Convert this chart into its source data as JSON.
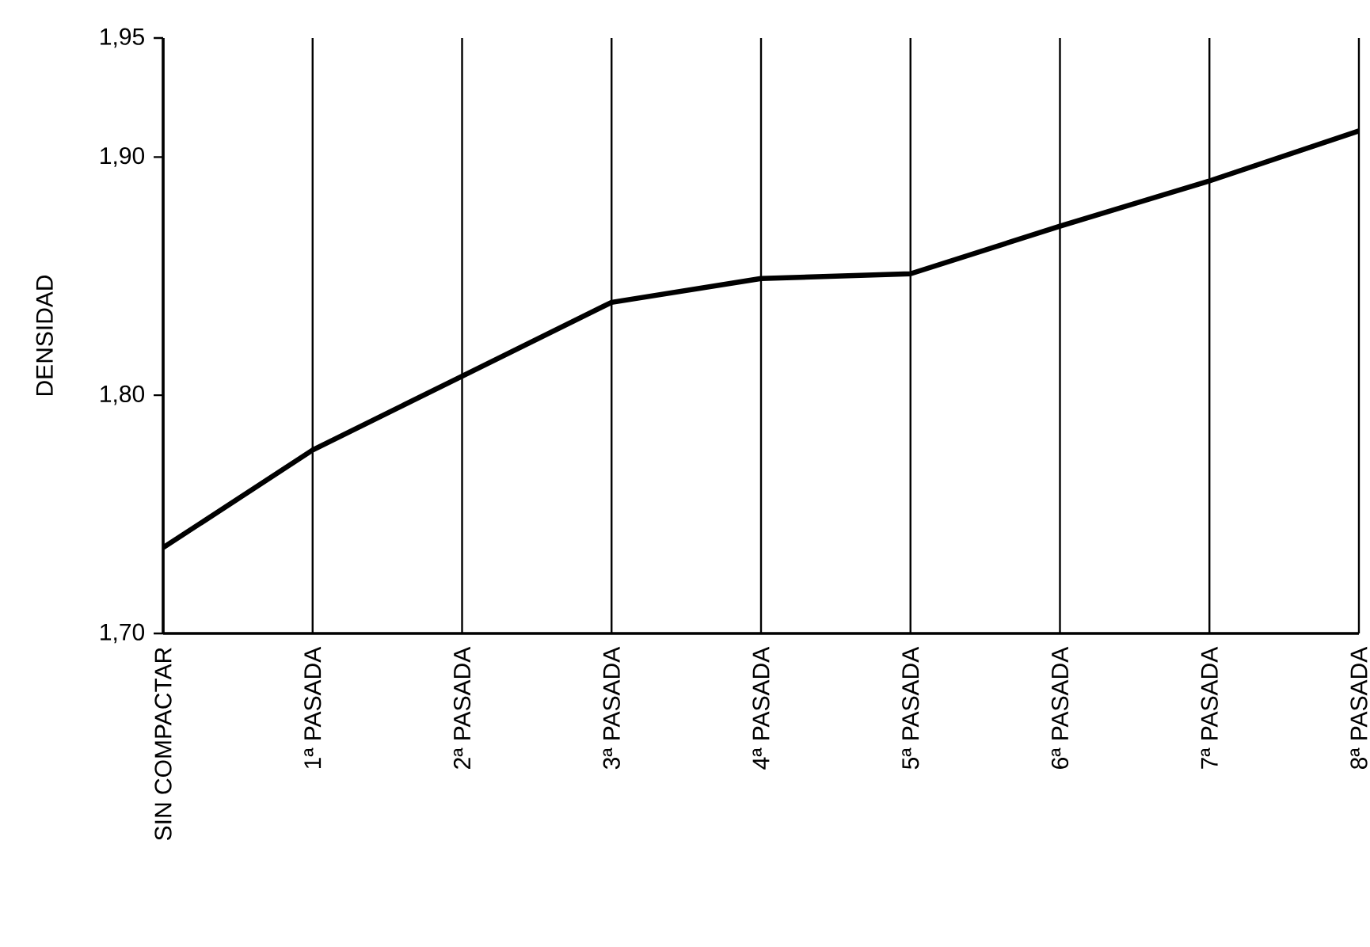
{
  "chart_data": {
    "type": "line",
    "ylabel": "DENSIDAD",
    "categories": [
      "SIN COMPACTAR",
      "1ª PASADA",
      "2ª PASADA",
      "3ª PASADA",
      "4ª PASADA",
      "5ª PASADA",
      "6ª PASADA",
      "7ª PASADA",
      "8ª PASADA"
    ],
    "series": [
      {
        "color": "#000000",
        "values": [
          1.736,
          1.777,
          1.808,
          1.839,
          1.849,
          1.851,
          1.871,
          1.89,
          1.911
        ]
      }
    ],
    "ylim": [
      1.7,
      1.95
    ],
    "yticks": [
      {
        "value": 1.7,
        "label": "1,70"
      },
      {
        "value": 1.8,
        "label": "1,80"
      },
      {
        "value": 1.9,
        "label": "1,90"
      },
      {
        "value": 1.95,
        "label": "1,95"
      }
    ],
    "grid": "x",
    "marker": "none",
    "line_style": "solid"
  }
}
